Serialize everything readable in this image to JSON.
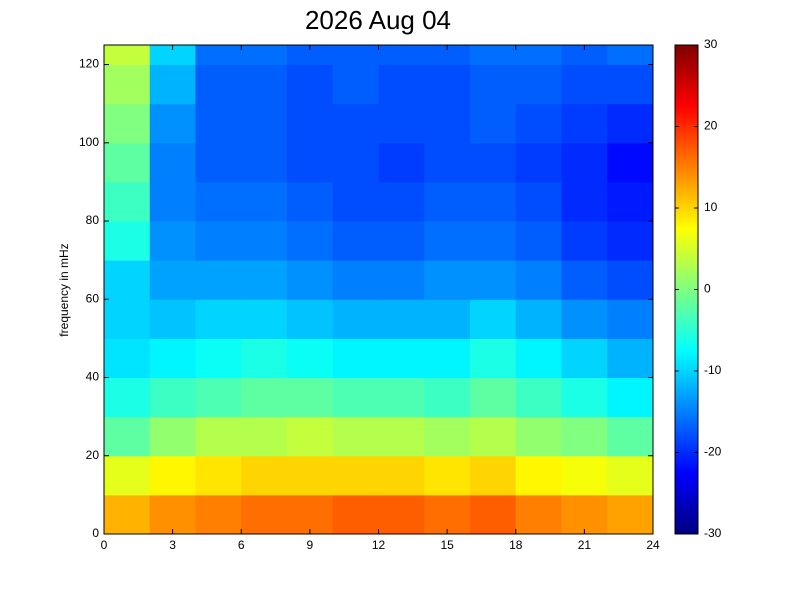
{
  "chart_data": {
    "type": "heatmap",
    "title": "2026 Aug 04",
    "ylabel": "frequency in mHz",
    "colormap": "jet",
    "xbins": [
      0,
      2,
      4,
      6,
      8,
      10,
      12,
      14,
      16,
      18,
      20,
      22,
      24
    ],
    "ybins": [
      0,
      10,
      20,
      30,
      40,
      50,
      60,
      70,
      80,
      90,
      100,
      110,
      120,
      125
    ],
    "values": [
      [
        12,
        14,
        15,
        16,
        16,
        17,
        17,
        16,
        17,
        15,
        14,
        13
      ],
      [
        6,
        8,
        9,
        10,
        10,
        10,
        10,
        9,
        10,
        8,
        7,
        6
      ],
      [
        -2,
        1,
        3,
        3,
        4,
        3,
        3,
        2,
        3,
        1,
        0,
        -2
      ],
      [
        -6,
        -4,
        -3,
        -2,
        -2,
        -3,
        -3,
        -4,
        -2,
        -4,
        -6,
        -8
      ],
      [
        -9,
        -8,
        -7,
        -6,
        -7,
        -8,
        -8,
        -8,
        -6,
        -8,
        -10,
        -12
      ],
      [
        -10,
        -11,
        -10,
        -10,
        -11,
        -12,
        -12,
        -12,
        -10,
        -12,
        -14,
        -15
      ],
      [
        -10,
        -13,
        -13,
        -13,
        -14,
        -15,
        -15,
        -14,
        -14,
        -15,
        -17,
        -18
      ],
      [
        -6,
        -14,
        -15,
        -15,
        -16,
        -17,
        -17,
        -16,
        -16,
        -17,
        -19,
        -20
      ],
      [
        -4,
        -15,
        -16,
        -16,
        -17,
        -18,
        -18,
        -17,
        -17,
        -18,
        -20,
        -21
      ],
      [
        -2,
        -15,
        -17,
        -17,
        -18,
        -18,
        -19,
        -18,
        -18,
        -19,
        -20,
        -22
      ],
      [
        0,
        -14,
        -17,
        -17,
        -18,
        -18,
        -18,
        -18,
        -17,
        -18,
        -19,
        -20
      ],
      [
        2,
        -12,
        -17,
        -17,
        -18,
        -17,
        -18,
        -18,
        -17,
        -17,
        -18,
        -18
      ],
      [
        4,
        -10,
        -16,
        -16,
        -17,
        -17,
        -17,
        -17,
        -16,
        -16,
        -17,
        -16
      ]
    ],
    "xlim": [
      0,
      24
    ],
    "xticks": [
      0,
      3,
      6,
      9,
      12,
      15,
      18,
      21,
      24
    ],
    "ylim": [
      0,
      125
    ],
    "yticks": [
      0,
      20,
      40,
      60,
      80,
      100,
      120
    ],
    "clim": [
      -30,
      30
    ],
    "cticks": [
      -30,
      -20,
      -10,
      0,
      10,
      20,
      30
    ]
  }
}
